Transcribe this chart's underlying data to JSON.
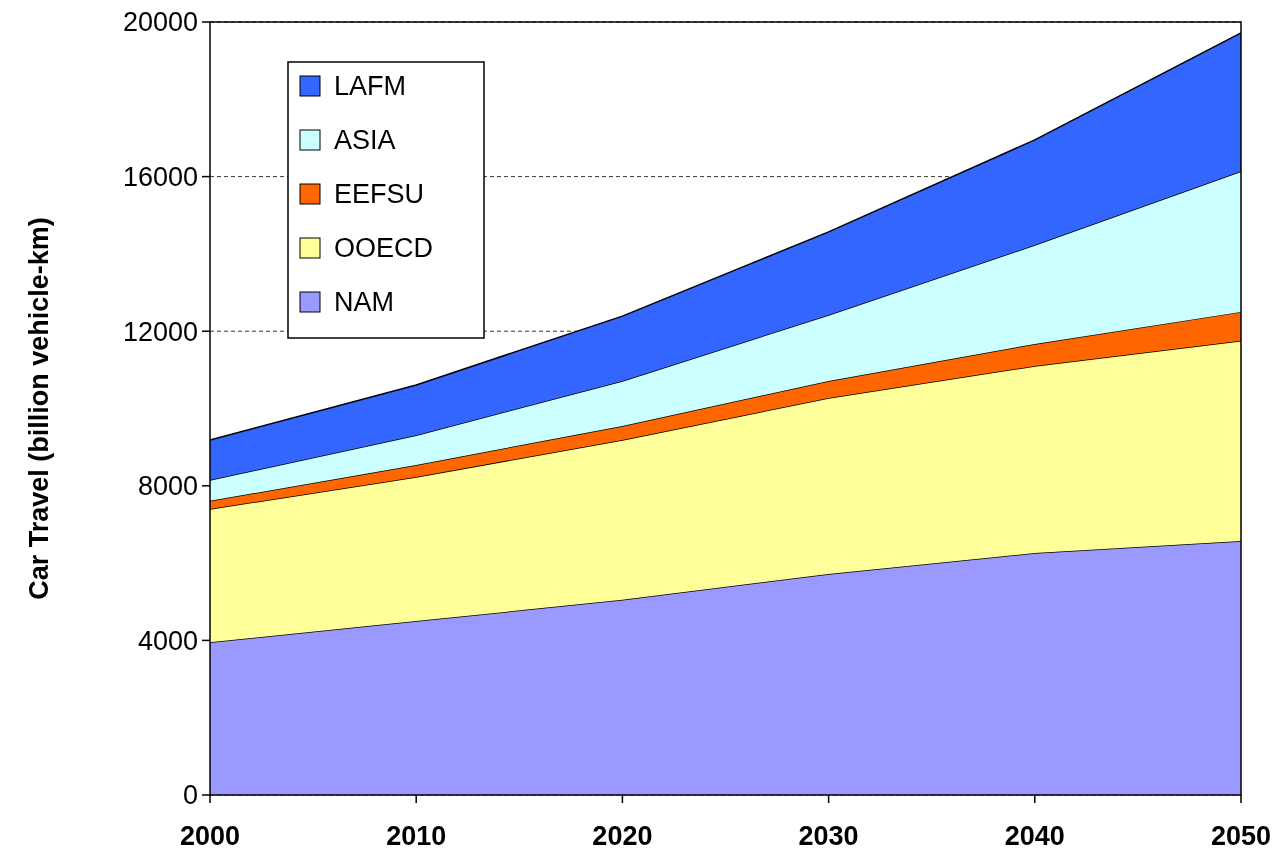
{
  "chart_data": {
    "type": "area",
    "stacked": true,
    "ylabel": "Car Travel (billion vehicle-km)",
    "x": [
      2000,
      2010,
      2020,
      2030,
      2040,
      2050
    ],
    "xlim": [
      2000,
      2050
    ],
    "xticks": [
      2000,
      2010,
      2020,
      2030,
      2040,
      2050
    ],
    "ylim": [
      0,
      20000
    ],
    "yticks": [
      0,
      4000,
      8000,
      12000,
      16000,
      20000
    ],
    "grid": "y",
    "legend": "top left",
    "series": [
      {
        "name": "NAM",
        "color": "#9999ff",
        "values": [
          3950,
          4500,
          5050,
          5720,
          6260,
          6570
        ]
      },
      {
        "name": "OOECD",
        "color": "#ffff99",
        "values": [
          3450,
          3730,
          4135,
          4550,
          4840,
          5180
        ]
      },
      {
        "name": "EEFSU",
        "color": "#ff6600",
        "values": [
          210,
          310,
          365,
          440,
          570,
          750
        ]
      },
      {
        "name": "ASIA",
        "color": "#ccffff",
        "values": [
          540,
          770,
          1160,
          1710,
          2560,
          3640
        ]
      },
      {
        "name": "LAFM",
        "color": "#3366ff",
        "values": [
          1035,
          1300,
          1680,
          2150,
          2720,
          3580
        ]
      }
    ]
  }
}
